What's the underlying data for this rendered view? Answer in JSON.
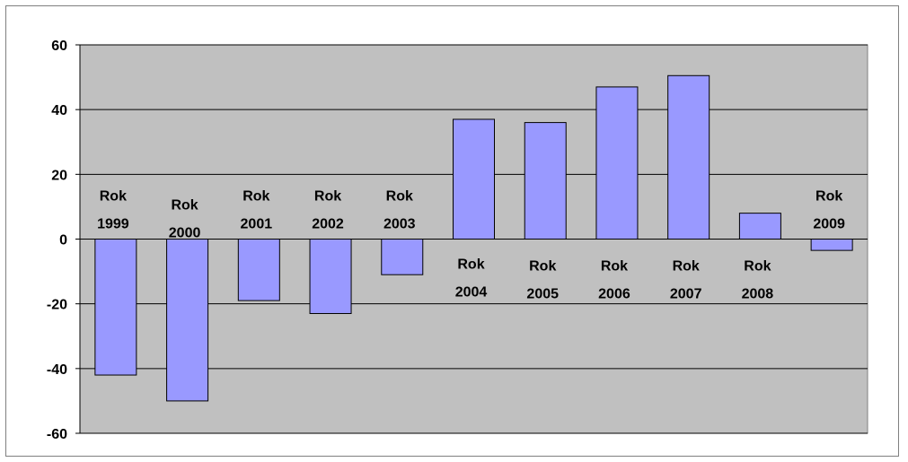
{
  "chart_data": {
    "type": "bar",
    "categories": [
      [
        "Rok",
        "1999"
      ],
      [
        "Rok",
        "2000"
      ],
      [
        "Rok",
        "2001"
      ],
      [
        "Rok",
        "2002"
      ],
      [
        "Rok",
        "2003"
      ],
      [
        "Rok",
        "2004"
      ],
      [
        "Rok",
        "2005"
      ],
      [
        "Rok",
        "2006"
      ],
      [
        "Rok",
        "2007"
      ],
      [
        "Rok",
        "2008"
      ],
      [
        "Rok",
        "2009"
      ]
    ],
    "values": [
      -42,
      -50,
      -19,
      -23,
      -11,
      37,
      36,
      47,
      50.5,
      8,
      -3.5
    ],
    "title": "",
    "xlabel": "",
    "ylabel": "",
    "ylim": [
      -60,
      60
    ],
    "yticks": [
      -60,
      -40,
      -20,
      0,
      20,
      40,
      60
    ],
    "grid": true,
    "legend": "none",
    "colors": {
      "plot_background": "#c0c0c0",
      "bar_fill": "#9999ff",
      "bar_stroke": "#000000",
      "gridline": "#000000"
    }
  }
}
